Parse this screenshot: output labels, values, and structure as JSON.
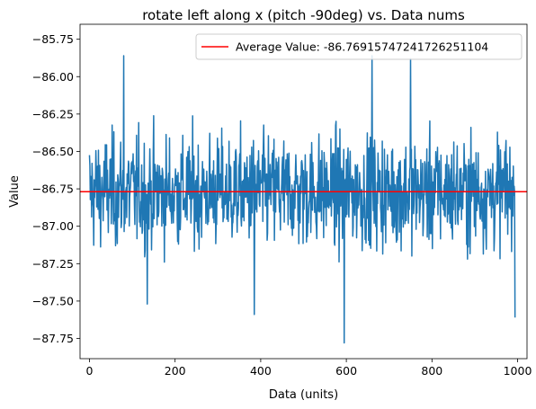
{
  "chart_data": {
    "type": "line",
    "title": "rotate left along x (pitch -90deg) vs. Data nums",
    "xlabel": "Data (units)",
    "ylabel": "Value",
    "xlim": [
      -22,
      1022
    ],
    "ylim": [
      -87.885,
      -85.65
    ],
    "xticks": [
      0,
      200,
      400,
      600,
      800,
      1000
    ],
    "xtick_labels": [
      "0",
      "200",
      "400",
      "600",
      "800",
      "1000"
    ],
    "yticks": [
      -85.75,
      -86.0,
      -86.25,
      -86.5,
      -86.75,
      -87.0,
      -87.25,
      -87.5,
      -87.75
    ],
    "ytick_labels": [
      "−85.75",
      "−86.00",
      "−86.25",
      "−86.50",
      "−86.75",
      "−87.00",
      "−87.25",
      "−87.50",
      "−87.75"
    ],
    "grid": false,
    "legend_position": "top-right",
    "series": [
      {
        "name": "",
        "color": "#1f77b4",
        "n_points": 995,
        "x_start": 0,
        "x_end": 994,
        "value_range": [
          -87.78,
          -85.86
        ],
        "notable_points": [
          {
            "x": 80,
            "y": -85.86
          },
          {
            "x": 135,
            "y": -87.52
          },
          {
            "x": 385,
            "y": -87.59
          },
          {
            "x": 595,
            "y": -87.78
          },
          {
            "x": 660,
            "y": -85.86
          },
          {
            "x": 750,
            "y": -85.88
          },
          {
            "x": 994,
            "y": -87.61
          }
        ]
      },
      {
        "name": "Average Value: -86.76915747241726251104",
        "type": "hline",
        "color": "#ff0000",
        "y": -86.76915747241726
      }
    ]
  }
}
